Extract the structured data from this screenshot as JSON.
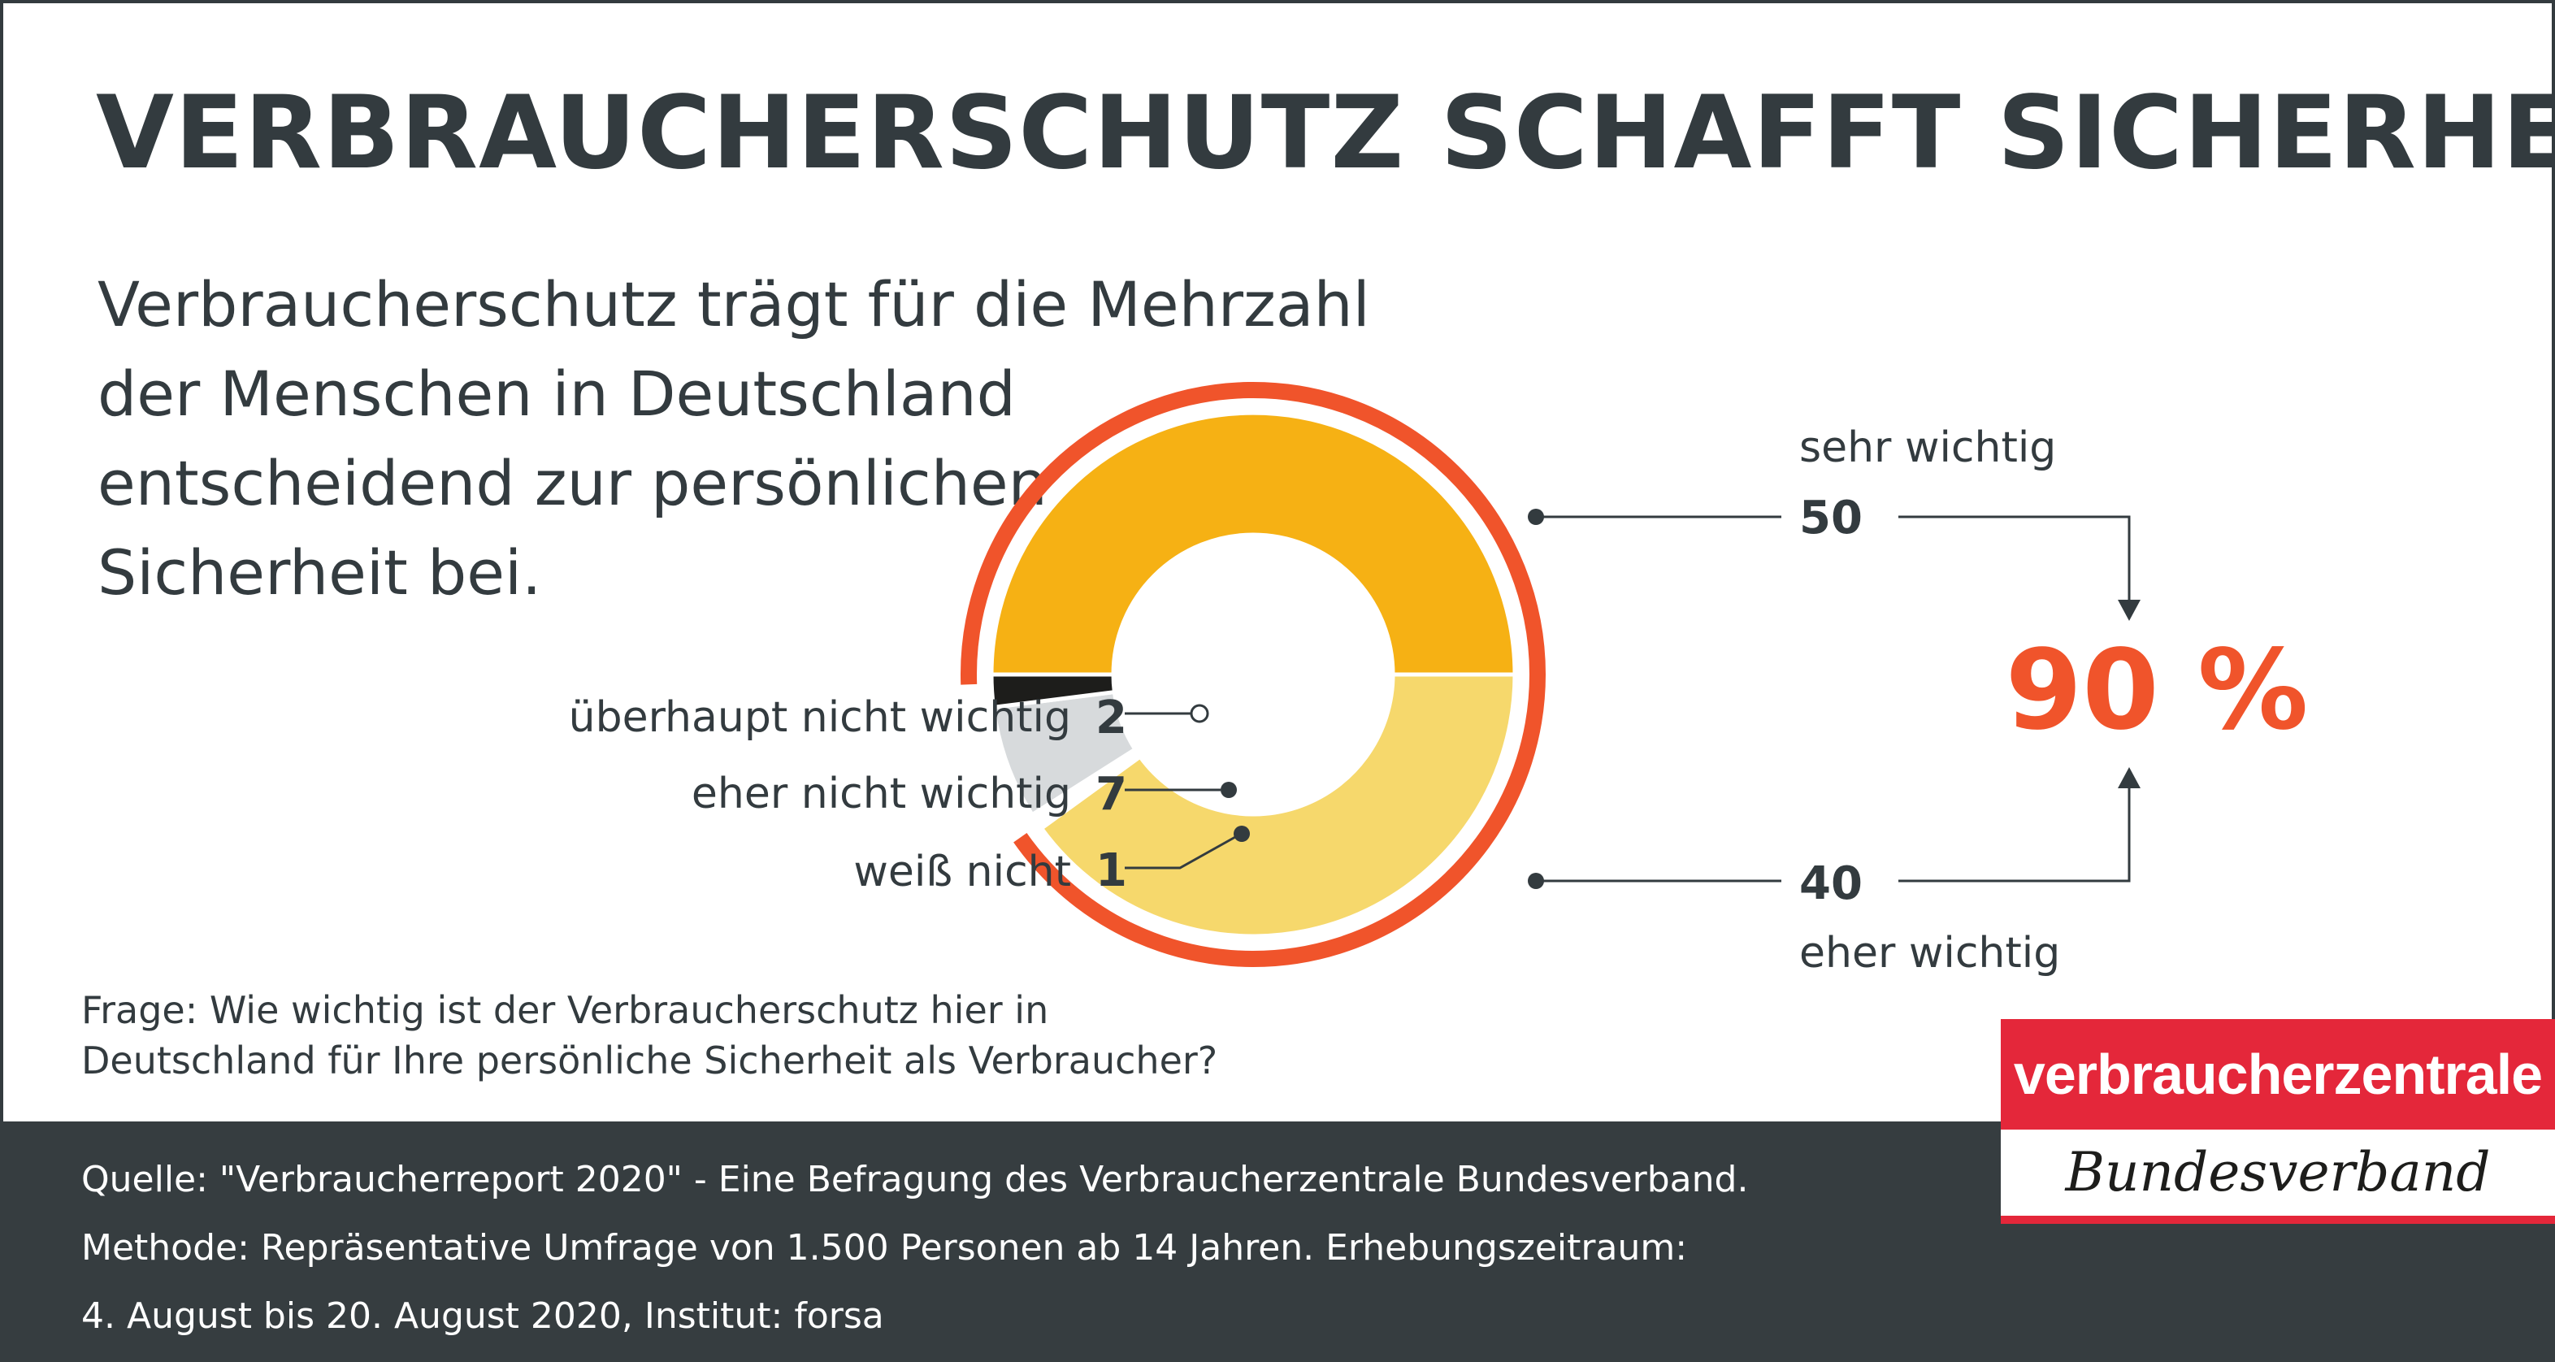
{
  "title": "VERBRAUCHERSCHUTZ SCHAFFT SICHERHEIT",
  "subtitle_lines": [
    "Verbraucherschutz trägt für die Mehrzahl",
    "der Menschen in Deutschland",
    "entscheidend zur persönlichen",
    "Sicherheit bei."
  ],
  "question_lines": [
    "Frage: Wie wichtig ist der Verbraucherschutz hier in",
    "Deutschland für Ihre persönliche Sicherheit als Verbraucher?"
  ],
  "source_lines": [
    "Quelle: \"Verbraucherreport 2020\" - Eine Befragung des Verbraucherzentrale Bundesverband.",
    "Methode: Repräsentative Umfrage von 1.500 Personen ab 14 Jahren. Erhebungszeitraum:",
    "4. August bis 20. August 2020, Institut: forsa"
  ],
  "logo": {
    "brand": "verbraucherzentrale",
    "sub": "Bundesverband"
  },
  "colors": {
    "dark": "#333b3f",
    "accent": "#f0542b",
    "red": "#e4273a",
    "sehr_wichtig": "#f6b114",
    "eher_wichtig": "#f6d86c",
    "weiss_nicht": "#ffffff",
    "eher_nicht_wichtig": "#d7dadc",
    "ueberhaupt_nicht_wichtig": "#1d1d1b"
  },
  "chart_data": {
    "type": "pie",
    "donut": true,
    "unit": "%",
    "slices": [
      {
        "label": "sehr wichtig",
        "value": 50,
        "color": "#f6b114"
      },
      {
        "label": "eher wichtig",
        "value": 40,
        "color": "#f6d86c"
      },
      {
        "label": "weiß nicht",
        "value": 1,
        "color": "#ffffff"
      },
      {
        "label": "eher nicht wichtig",
        "value": 7,
        "color": "#d7dadc"
      },
      {
        "label": "überhaupt nicht wichtig",
        "value": 2,
        "color": "#1d1d1b"
      }
    ],
    "total_label": "90 %",
    "total_value": 90,
    "total_of": [
      "sehr wichtig",
      "eher wichtig"
    ]
  }
}
